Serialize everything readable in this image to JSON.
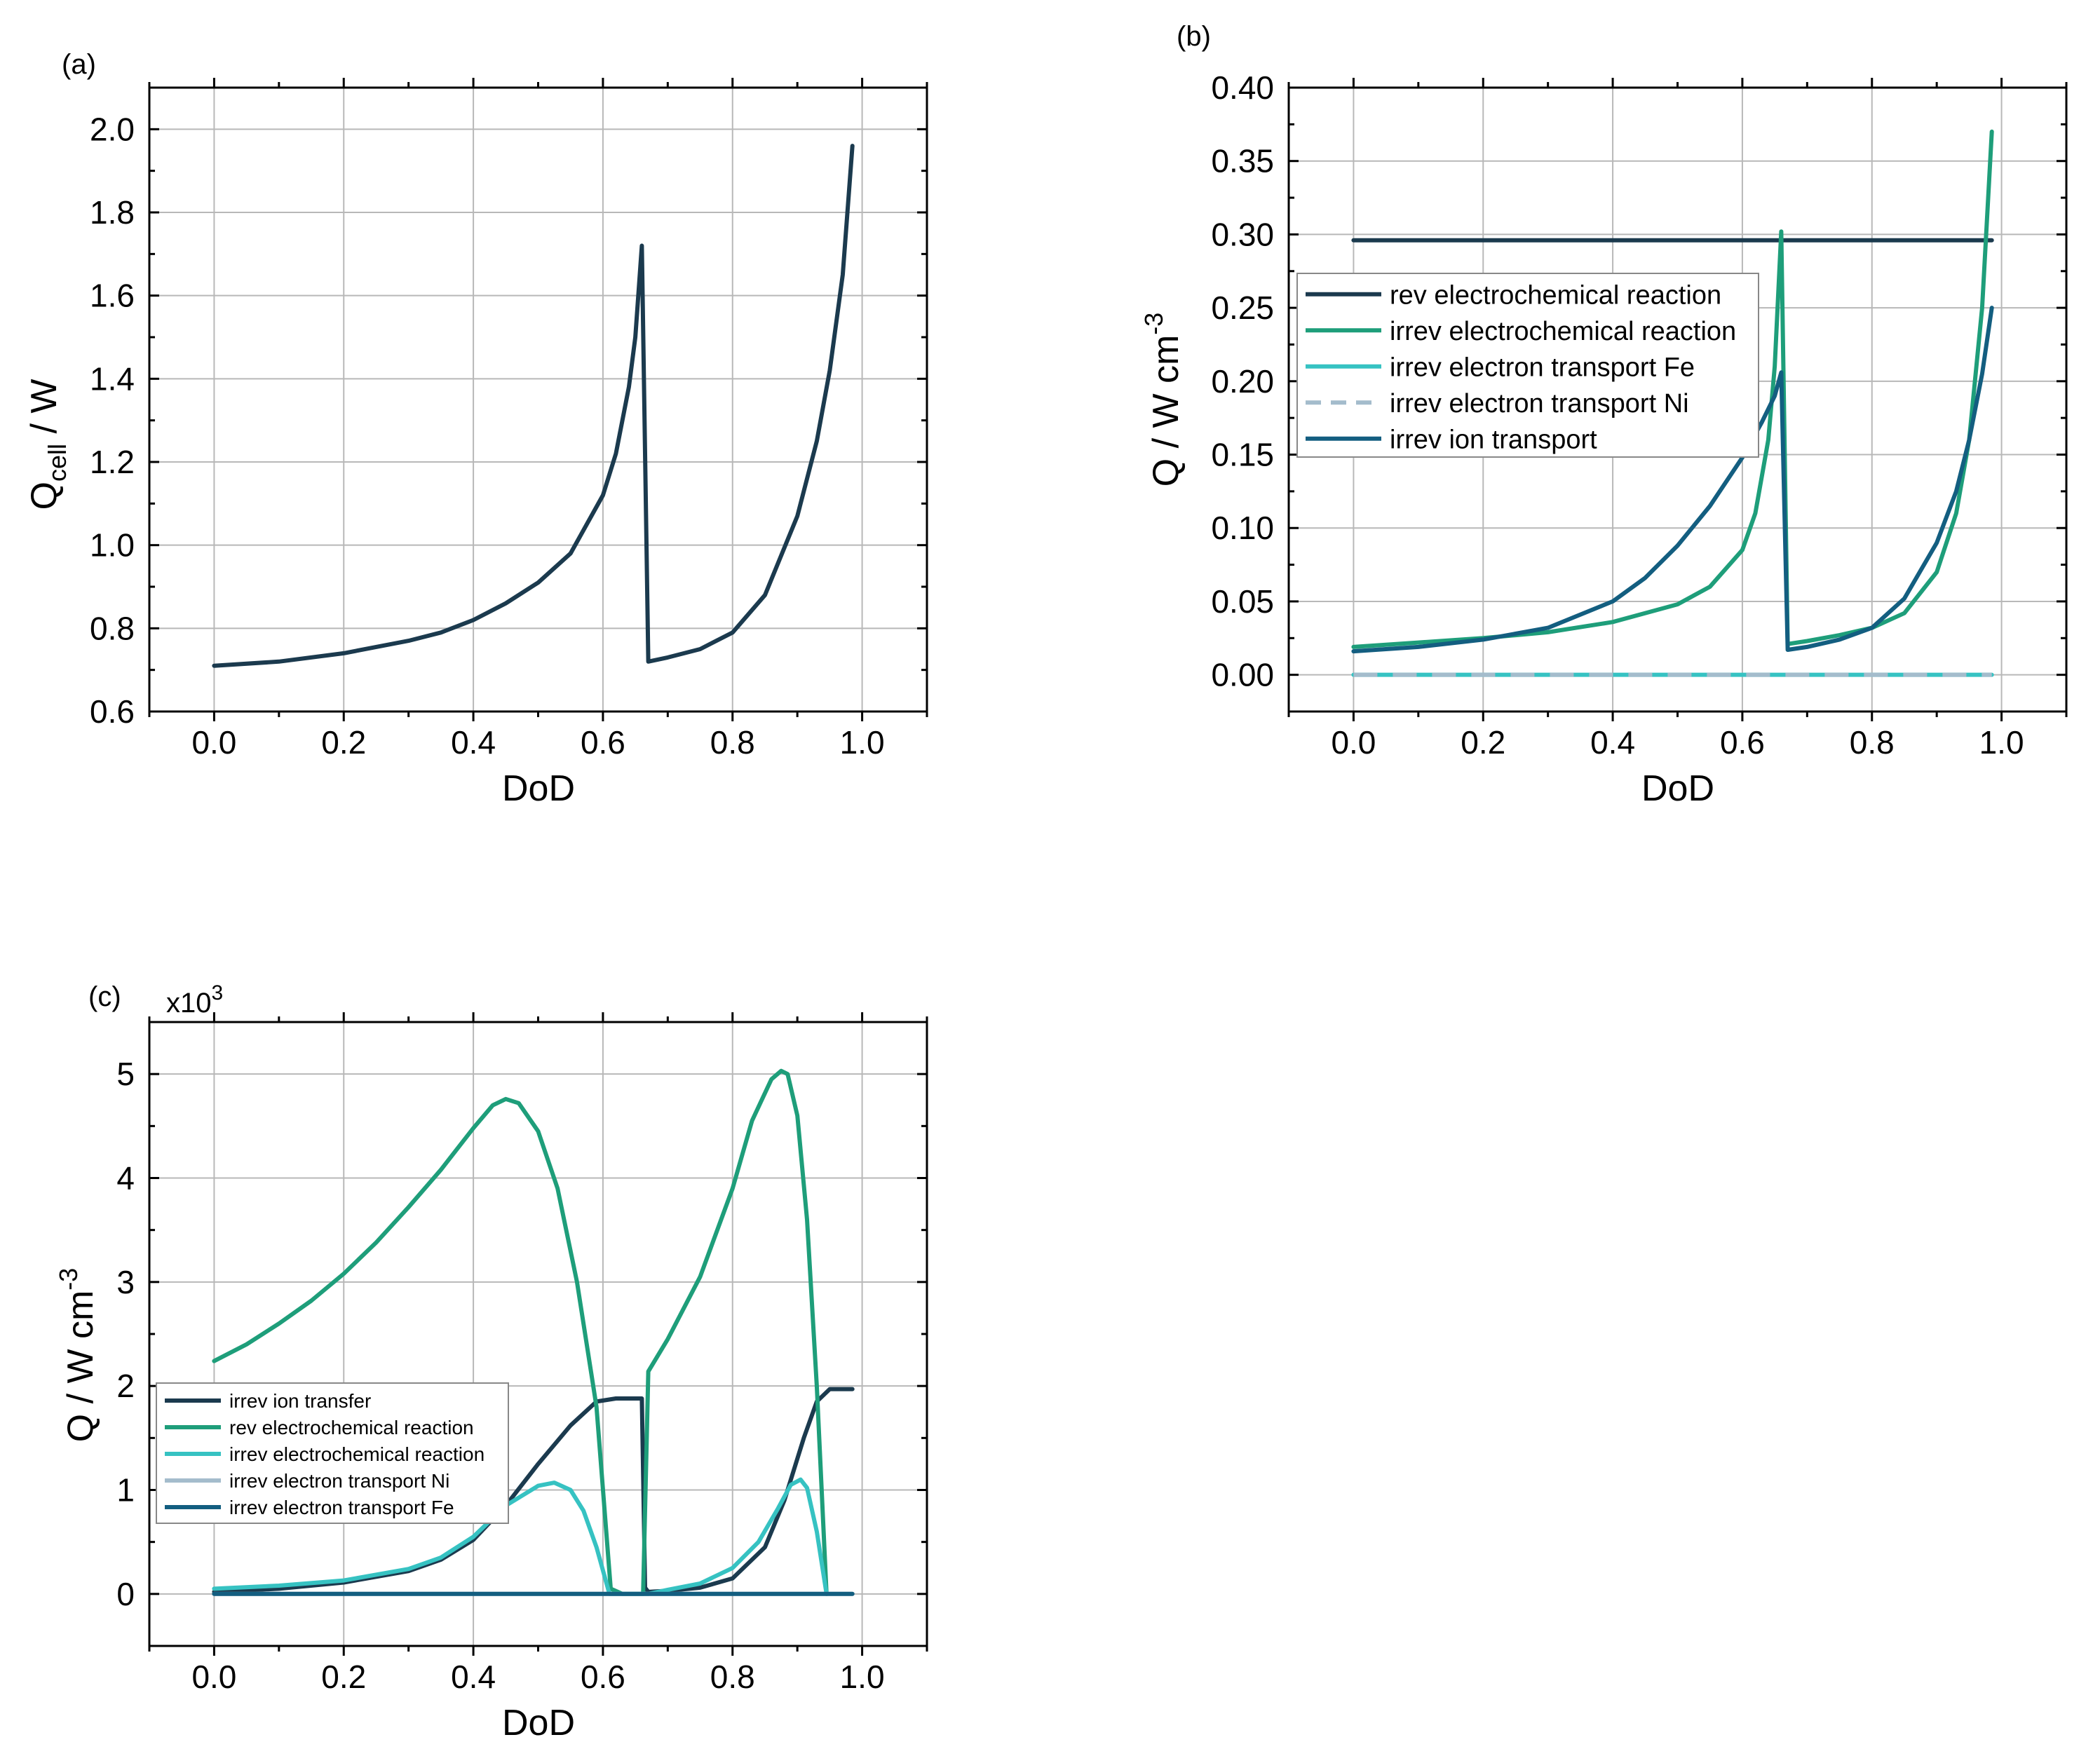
{
  "colors": {
    "dark_navy": "#1b3a4e",
    "green": "#1e9e7a",
    "cyan": "#36c2c2",
    "gray_blue": "#a4bccc",
    "teal_blue": "#135e80"
  },
  "chart_data": [
    {
      "id": "a",
      "type": "line",
      "panel_label": "(a)",
      "xlabel": "DoD",
      "ylabel_main": "Q",
      "ylabel_sub": "cell",
      "ylabel_unit": " / W",
      "xlim": [
        -0.1,
        1.1
      ],
      "ylim": [
        0.6,
        2.1
      ],
      "xticks": [
        "0.0",
        "0.2",
        "0.4",
        "0.6",
        "0.8",
        "1.0"
      ],
      "xtick_values": [
        0,
        0.2,
        0.4,
        0.6,
        0.8,
        1.0
      ],
      "yticks": [
        "0.6",
        "0.8",
        "1.0",
        "1.2",
        "1.4",
        "1.6",
        "1.8",
        "2.0"
      ],
      "ytick_values": [
        0.6,
        0.8,
        1.0,
        1.2,
        1.4,
        1.6,
        1.8,
        2.0
      ],
      "grid": true,
      "series": [
        {
          "name": "Q_cell",
          "color": "#1b3a4e",
          "dash": false,
          "x": [
            0.0,
            0.1,
            0.2,
            0.3,
            0.35,
            0.4,
            0.45,
            0.5,
            0.55,
            0.6,
            0.62,
            0.64,
            0.65,
            0.66,
            0.67,
            0.7,
            0.75,
            0.8,
            0.85,
            0.9,
            0.93,
            0.95,
            0.97,
            0.985
          ],
          "y": [
            0.71,
            0.72,
            0.74,
            0.77,
            0.79,
            0.82,
            0.86,
            0.91,
            0.98,
            1.12,
            1.22,
            1.38,
            1.5,
            1.72,
            0.72,
            0.73,
            0.75,
            0.79,
            0.88,
            1.07,
            1.25,
            1.42,
            1.65,
            1.96
          ]
        }
      ]
    },
    {
      "id": "b",
      "type": "line",
      "panel_label": "(b)",
      "xlabel": "DoD",
      "ylabel_main": "Q / W cm",
      "ylabel_sup": "-3",
      "xlim": [
        -0.1,
        1.1
      ],
      "ylim": [
        -0.025,
        0.4
      ],
      "xticks": [
        "0.0",
        "0.2",
        "0.4",
        "0.6",
        "0.8",
        "1.0"
      ],
      "xtick_values": [
        0,
        0.2,
        0.4,
        0.6,
        0.8,
        1.0
      ],
      "yticks": [
        "0.00",
        "0.05",
        "0.10",
        "0.15",
        "0.20",
        "0.25",
        "0.30",
        "0.35",
        "0.40"
      ],
      "ytick_values": [
        0,
        0.05,
        0.1,
        0.15,
        0.2,
        0.25,
        0.3,
        0.35,
        0.4
      ],
      "grid": true,
      "legend_position": "upper-left",
      "series": [
        {
          "name": "rev electrochemical reaction",
          "color": "#1b3a4e",
          "dash": false,
          "x": [
            0.0,
            0.985
          ],
          "y": [
            0.296,
            0.296
          ]
        },
        {
          "name": "irrev electrochemical reaction",
          "color": "#1e9e7a",
          "dash": false,
          "x": [
            0.0,
            0.1,
            0.2,
            0.3,
            0.4,
            0.5,
            0.55,
            0.6,
            0.62,
            0.64,
            0.65,
            0.66,
            0.67,
            0.7,
            0.75,
            0.8,
            0.85,
            0.9,
            0.93,
            0.95,
            0.97,
            0.985
          ],
          "y": [
            0.019,
            0.022,
            0.025,
            0.029,
            0.036,
            0.048,
            0.06,
            0.085,
            0.11,
            0.16,
            0.21,
            0.302,
            0.021,
            0.023,
            0.027,
            0.032,
            0.042,
            0.07,
            0.11,
            0.16,
            0.25,
            0.37
          ]
        },
        {
          "name": "irrev electron transport Fe",
          "color": "#36c2c2",
          "dash": false,
          "x": [
            0.0,
            0.985
          ],
          "y": [
            0.0,
            0.0
          ]
        },
        {
          "name": "irrev electron transport Ni",
          "color": "#a4bccc",
          "dash": true,
          "x": [
            0.0,
            0.985
          ],
          "y": [
            0.0,
            0.0
          ]
        },
        {
          "name": "irrev ion transport",
          "color": "#135e80",
          "dash": false,
          "x": [
            0.0,
            0.1,
            0.2,
            0.3,
            0.4,
            0.45,
            0.5,
            0.55,
            0.6,
            0.63,
            0.65,
            0.66,
            0.67,
            0.7,
            0.75,
            0.8,
            0.85,
            0.9,
            0.93,
            0.95,
            0.97,
            0.985
          ],
          "y": [
            0.016,
            0.019,
            0.024,
            0.032,
            0.05,
            0.066,
            0.088,
            0.115,
            0.148,
            0.172,
            0.19,
            0.206,
            0.017,
            0.019,
            0.024,
            0.032,
            0.052,
            0.09,
            0.125,
            0.16,
            0.205,
            0.25
          ]
        }
      ]
    },
    {
      "id": "c",
      "type": "line",
      "panel_label": "(c)",
      "scale_label": "x10",
      "scale_sup": "3",
      "xlabel": "DoD",
      "ylabel_main": "Q / W cm",
      "ylabel_sup": "-3",
      "xlim": [
        -0.1,
        1.1
      ],
      "ylim": [
        -0.5,
        5.5
      ],
      "xticks": [
        "0.0",
        "0.2",
        "0.4",
        "0.6",
        "0.8",
        "1.0"
      ],
      "xtick_values": [
        0,
        0.2,
        0.4,
        0.6,
        0.8,
        1.0
      ],
      "yticks": [
        "0",
        "1",
        "2",
        "3",
        "4",
        "5"
      ],
      "ytick_values": [
        0,
        1,
        2,
        3,
        4,
        5
      ],
      "grid": true,
      "legend_position": "lower-left",
      "series": [
        {
          "name": "irrev ion transfer",
          "color": "#1b3a4e",
          "dash": false,
          "x": [
            0.0,
            0.1,
            0.2,
            0.3,
            0.35,
            0.4,
            0.45,
            0.5,
            0.55,
            0.59,
            0.62,
            0.66,
            0.665,
            0.67,
            0.7,
            0.75,
            0.8,
            0.85,
            0.88,
            0.91,
            0.93,
            0.95,
            0.985
          ],
          "y": [
            0.02,
            0.05,
            0.11,
            0.22,
            0.33,
            0.52,
            0.85,
            1.25,
            1.62,
            1.85,
            1.88,
            1.88,
            0.06,
            0.02,
            0.03,
            0.06,
            0.15,
            0.45,
            0.9,
            1.5,
            1.85,
            1.97,
            1.97
          ]
        },
        {
          "name": "rev electrochemical reaction",
          "color": "#1e9e7a",
          "dash": false,
          "x": [
            0.0,
            0.05,
            0.1,
            0.15,
            0.2,
            0.25,
            0.3,
            0.35,
            0.4,
            0.43,
            0.45,
            0.47,
            0.5,
            0.53,
            0.56,
            0.59,
            0.612,
            0.63,
            0.655,
            0.662,
            0.67,
            0.7,
            0.75,
            0.8,
            0.83,
            0.86,
            0.875,
            0.885,
            0.9,
            0.915,
            0.93,
            0.945
          ],
          "y": [
            2.24,
            2.4,
            2.6,
            2.82,
            3.08,
            3.38,
            3.72,
            4.08,
            4.48,
            4.7,
            4.76,
            4.72,
            4.45,
            3.9,
            3.0,
            1.8,
            0.05,
            0.0,
            0.0,
            0.0,
            2.14,
            2.45,
            3.05,
            3.9,
            4.55,
            4.95,
            5.03,
            5.0,
            4.6,
            3.6,
            2.0,
            0.0
          ]
        },
        {
          "name": "irrev electrochemical reaction",
          "color": "#36c2c2",
          "dash": false,
          "x": [
            0.0,
            0.1,
            0.2,
            0.3,
            0.35,
            0.4,
            0.45,
            0.5,
            0.525,
            0.55,
            0.57,
            0.59,
            0.61,
            0.67,
            0.7,
            0.75,
            0.8,
            0.84,
            0.87,
            0.89,
            0.905,
            0.915,
            0.93,
            0.945
          ],
          "y": [
            0.05,
            0.08,
            0.13,
            0.24,
            0.35,
            0.55,
            0.85,
            1.04,
            1.07,
            1.0,
            0.8,
            0.45,
            0.0,
            0.0,
            0.04,
            0.1,
            0.25,
            0.5,
            0.82,
            1.05,
            1.1,
            1.02,
            0.6,
            0.0
          ]
        },
        {
          "name": "irrev electron transport Ni",
          "color": "#a4bccc",
          "dash": false,
          "x": [
            0.0,
            0.985
          ],
          "y": [
            0.0,
            0.0
          ]
        },
        {
          "name": "irrev electron transport Fe",
          "color": "#135e80",
          "dash": false,
          "x": [
            0.0,
            0.985
          ],
          "y": [
            0.0,
            0.0
          ]
        }
      ]
    }
  ]
}
